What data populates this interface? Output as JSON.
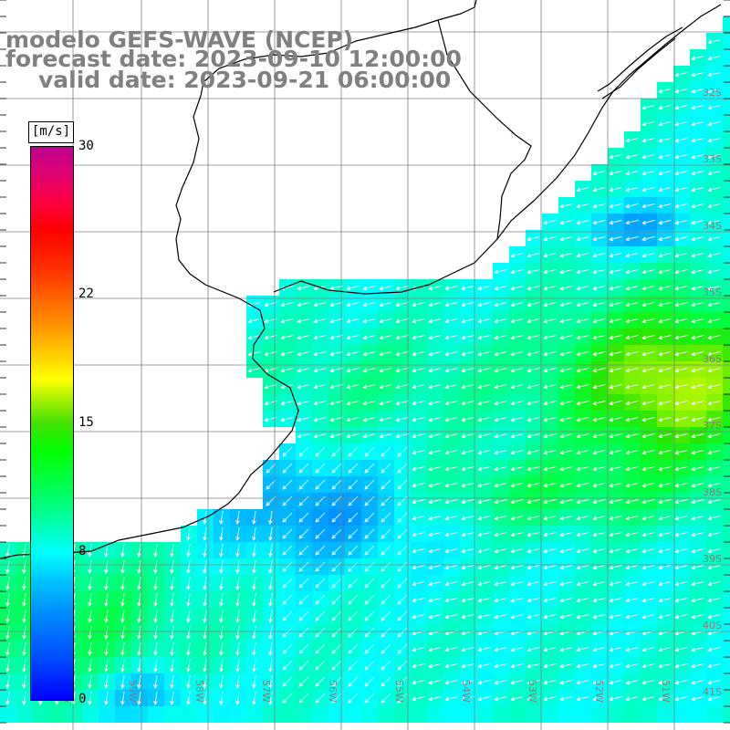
{
  "title": {
    "line1": "modelo GEFS-WAVE (NCEP)",
    "line2": "forecast date: 2023-09-10 12:00:00",
    "line3": "valid date: 2023-09-21 06:00:00"
  },
  "colorbar": {
    "unit": "[m/s]",
    "ticks": [
      {
        "label": "30",
        "value": 30
      },
      {
        "label": "22",
        "value": 22
      },
      {
        "label": "15",
        "value": 15
      },
      {
        "label": "8",
        "value": 8
      },
      {
        "label": "0",
        "value": 0
      }
    ],
    "min": 0,
    "max": 30
  },
  "map": {
    "lat_labels": [
      "32S",
      "33S",
      "34S",
      "35S",
      "36S",
      "37S",
      "38S",
      "39S",
      "40S",
      "41S"
    ],
    "lon_labels": [
      "60W",
      "59W",
      "58W",
      "57W",
      "56W",
      "55W",
      "54W",
      "53W",
      "52W",
      "51W"
    ],
    "colors": {
      "land": "#ffffff",
      "grid": "#808080",
      "coast": "#000000",
      "arrows": "#ffffff",
      "text": "#808080"
    }
  }
}
